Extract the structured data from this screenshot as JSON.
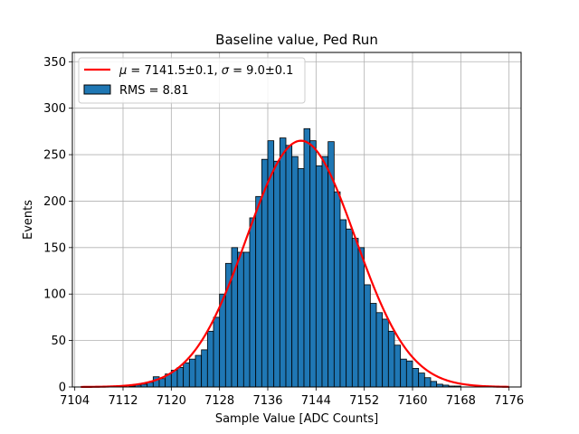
{
  "chart_data": {
    "type": "bar",
    "title": "Baseline value, Ped Run",
    "xlabel": "Sample Value [ADC Counts]",
    "ylabel": "Events",
    "xlim": [
      7103.6,
      7178
    ],
    "ylim": [
      0,
      360
    ],
    "xticks": [
      7104,
      7112,
      7120,
      7128,
      7136,
      7144,
      7152,
      7160,
      7168,
      7176
    ],
    "yticks": [
      0,
      50,
      100,
      150,
      200,
      250,
      300,
      350
    ],
    "grid": true,
    "legend_position": "top-left",
    "bin_width": 1,
    "bin_starts": [
      7105,
      7106,
      7107,
      7108,
      7109,
      7110,
      7111,
      7112,
      7113,
      7114,
      7115,
      7116,
      7117,
      7118,
      7119,
      7120,
      7121,
      7122,
      7123,
      7124,
      7125,
      7126,
      7127,
      7128,
      7129,
      7130,
      7131,
      7132,
      7133,
      7134,
      7135,
      7136,
      7137,
      7138,
      7139,
      7140,
      7141,
      7142,
      7143,
      7144,
      7145,
      7146,
      7147,
      7148,
      7149,
      7150,
      7151,
      7152,
      7153,
      7154,
      7155,
      7156,
      7157,
      7158,
      7159,
      7160,
      7161,
      7162,
      7163,
      7164,
      7165,
      7166,
      7167,
      7168,
      7169,
      7170,
      7171,
      7172,
      7173,
      7174,
      7175,
      7176
    ],
    "counts": [
      0,
      0,
      0,
      0,
      0,
      0,
      0,
      0,
      1,
      2,
      3,
      5,
      11,
      9,
      14,
      18,
      21,
      26,
      30,
      34,
      40,
      60,
      75,
      100,
      133,
      150,
      145,
      145,
      182,
      205,
      245,
      265,
      243,
      268,
      260,
      248,
      235,
      278,
      265,
      238,
      248,
      264,
      210,
      180,
      170,
      160,
      150,
      110,
      90,
      80,
      73,
      60,
      45,
      30,
      28,
      20,
      15,
      10,
      6,
      3,
      2,
      1,
      1,
      0,
      0,
      0,
      0,
      0,
      0,
      0,
      0,
      0
    ],
    "series": [
      {
        "name": "RMS = 8.81",
        "type": "histogram",
        "color": "#1f77b4"
      },
      {
        "name": "μ = 7141.5±0.1, σ = 9.0±0.1",
        "type": "gaussian-fit",
        "color": "#ff0000",
        "amplitude": 265,
        "mu": 7141.5,
        "sigma": 9.0,
        "x_range": [
          7105,
          7176
        ]
      }
    ]
  },
  "legend": {
    "fit_label_mu": "μ",
    "fit_label_text_mu": " = 7141.5±0.1, ",
    "fit_label_sigma": "σ",
    "fit_label_text_sigma": " = 9.0±0.1",
    "hist_label": "RMS = 8.81"
  }
}
